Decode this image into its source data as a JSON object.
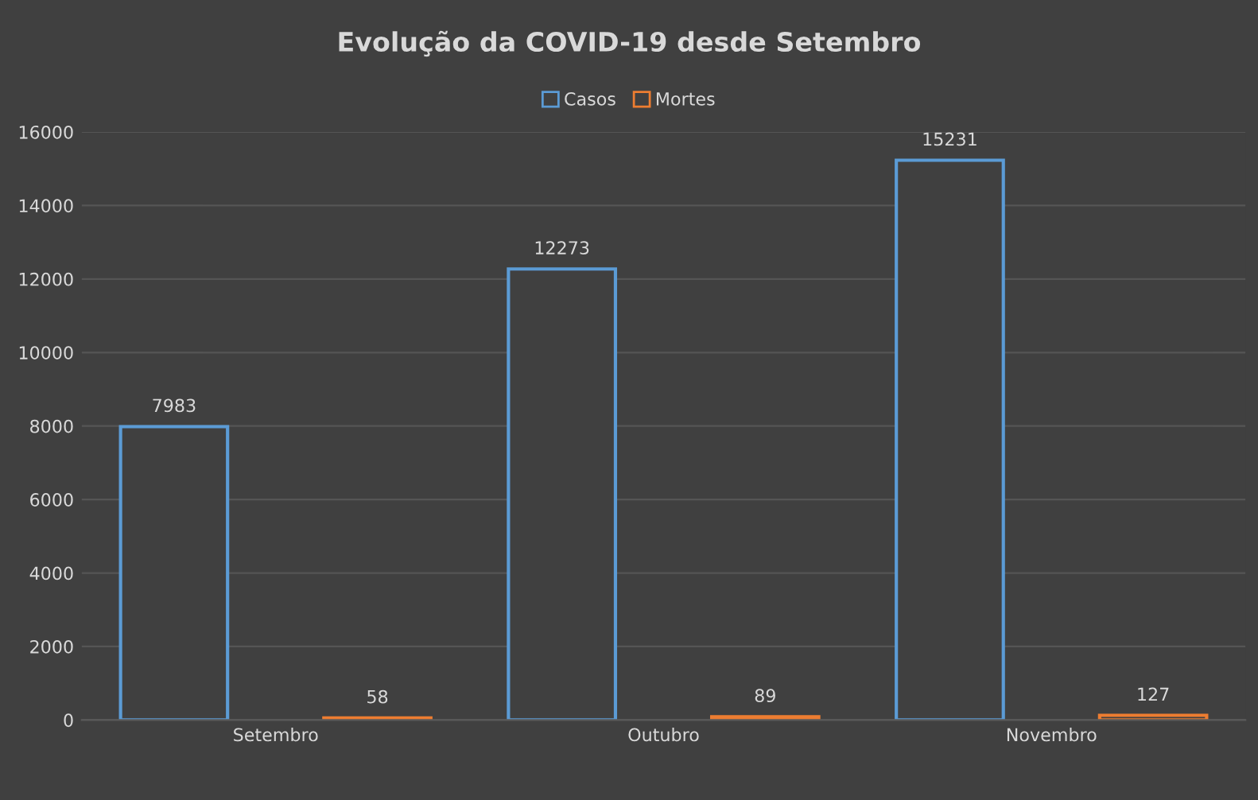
{
  "chart_data": {
    "type": "bar",
    "title": "Evolução da COVID-19 desde Setembro",
    "categories": [
      "Setembro",
      "Outubro",
      "Novembro"
    ],
    "series": [
      {
        "name": "Casos",
        "color": "#5b9bd5",
        "values": [
          7983,
          12273,
          15231
        ]
      },
      {
        "name": "Mortes",
        "color": "#ed7d31",
        "values": [
          58,
          89,
          127
        ]
      }
    ],
    "ylim": [
      0,
      16000
    ],
    "yticks": [
      0,
      2000,
      4000,
      6000,
      8000,
      10000,
      12000,
      14000,
      16000
    ],
    "grid": "y",
    "legend": "top",
    "data_labels": true
  }
}
